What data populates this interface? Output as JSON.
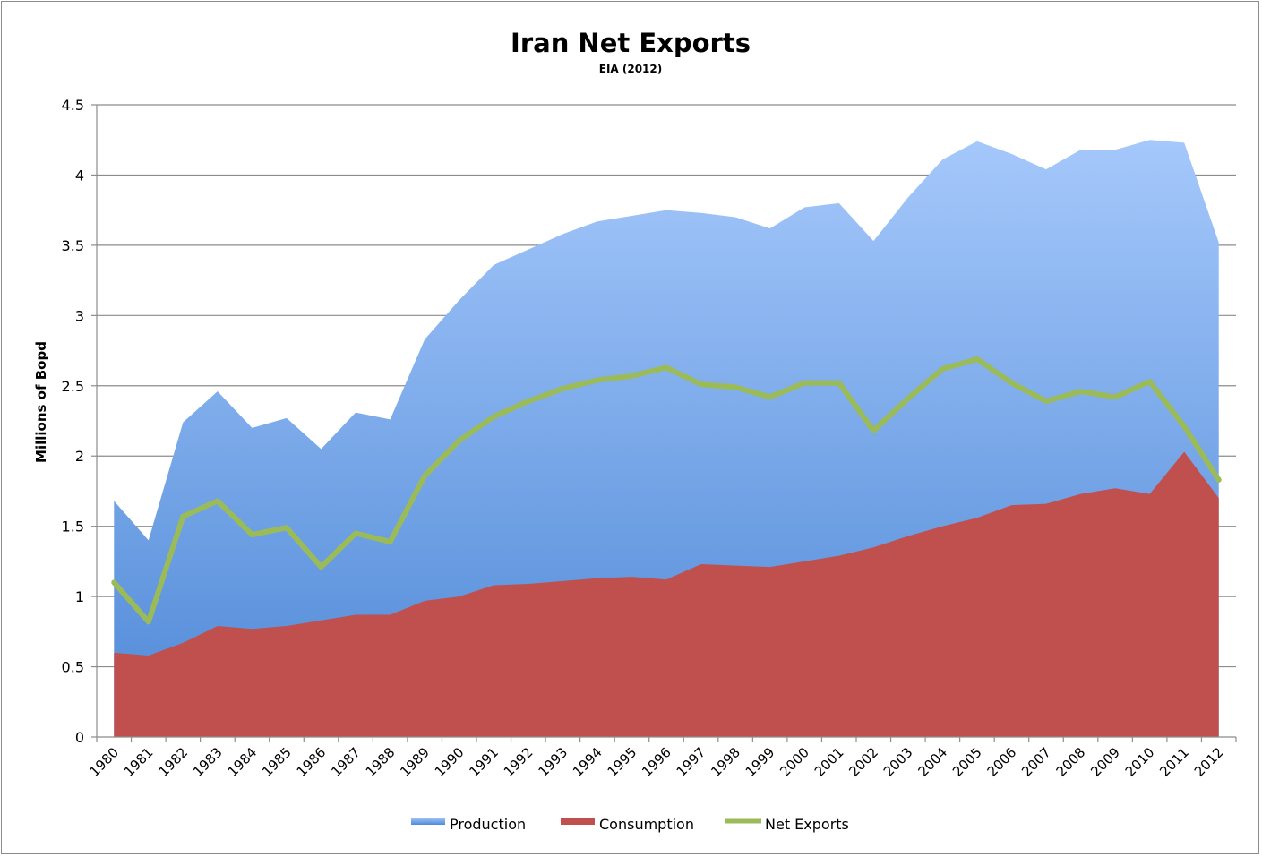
{
  "chart_data": {
    "type": "area",
    "title": "Iran Net Exports",
    "subtitle": "EIA (2012)",
    "xlabel": "",
    "ylabel": "Millions of Bopd",
    "ylim": [
      0,
      4.5
    ],
    "yticks": [
      "0",
      "0.5",
      "1",
      "1.5",
      "2",
      "2.5",
      "3",
      "3.5",
      "4",
      "4.5"
    ],
    "ytick_values": [
      0,
      0.5,
      1,
      1.5,
      2,
      2.5,
      3,
      3.5,
      4,
      4.5
    ],
    "grid": true,
    "legend_position": "bottom",
    "categories": [
      "1980",
      "1981",
      "1982",
      "1983",
      "1984",
      "1985",
      "1986",
      "1987",
      "1988",
      "1989",
      "1990",
      "1991",
      "1992",
      "1993",
      "1994",
      "1995",
      "1996",
      "1997",
      "1998",
      "1999",
      "2000",
      "2001",
      "2002",
      "2003",
      "2004",
      "2005",
      "2006",
      "2007",
      "2008",
      "2009",
      "2010",
      "2011",
      "2012"
    ],
    "series": [
      {
        "name": "Production",
        "kind": "area",
        "color": "#5b8fdc",
        "values": [
          1.68,
          1.4,
          2.24,
          2.46,
          2.2,
          2.27,
          2.05,
          2.31,
          2.26,
          2.83,
          3.11,
          3.36,
          3.47,
          3.58,
          3.67,
          3.71,
          3.75,
          3.73,
          3.7,
          3.62,
          3.77,
          3.8,
          3.53,
          3.84,
          4.11,
          4.24,
          4.15,
          4.04,
          4.18,
          4.18,
          4.25,
          4.23,
          3.52
        ]
      },
      {
        "name": "Consumption",
        "kind": "area",
        "color": "#c0504d",
        "values": [
          0.6,
          0.58,
          0.67,
          0.79,
          0.77,
          0.79,
          0.83,
          0.87,
          0.87,
          0.97,
          1.0,
          1.08,
          1.09,
          1.11,
          1.13,
          1.14,
          1.12,
          1.23,
          1.22,
          1.21,
          1.25,
          1.29,
          1.35,
          1.43,
          1.5,
          1.56,
          1.65,
          1.66,
          1.73,
          1.77,
          1.73,
          2.03,
          1.7
        ]
      },
      {
        "name": "Net  Exports",
        "kind": "line",
        "color": "#9bbb59",
        "values": [
          1.1,
          0.82,
          1.57,
          1.68,
          1.44,
          1.49,
          1.21,
          1.45,
          1.39,
          1.86,
          2.11,
          2.28,
          2.39,
          2.48,
          2.54,
          2.57,
          2.63,
          2.51,
          2.49,
          2.42,
          2.52,
          2.52,
          2.18,
          2.41,
          2.62,
          2.69,
          2.52,
          2.39,
          2.46,
          2.42,
          2.53,
          2.21,
          1.83
        ]
      }
    ]
  }
}
